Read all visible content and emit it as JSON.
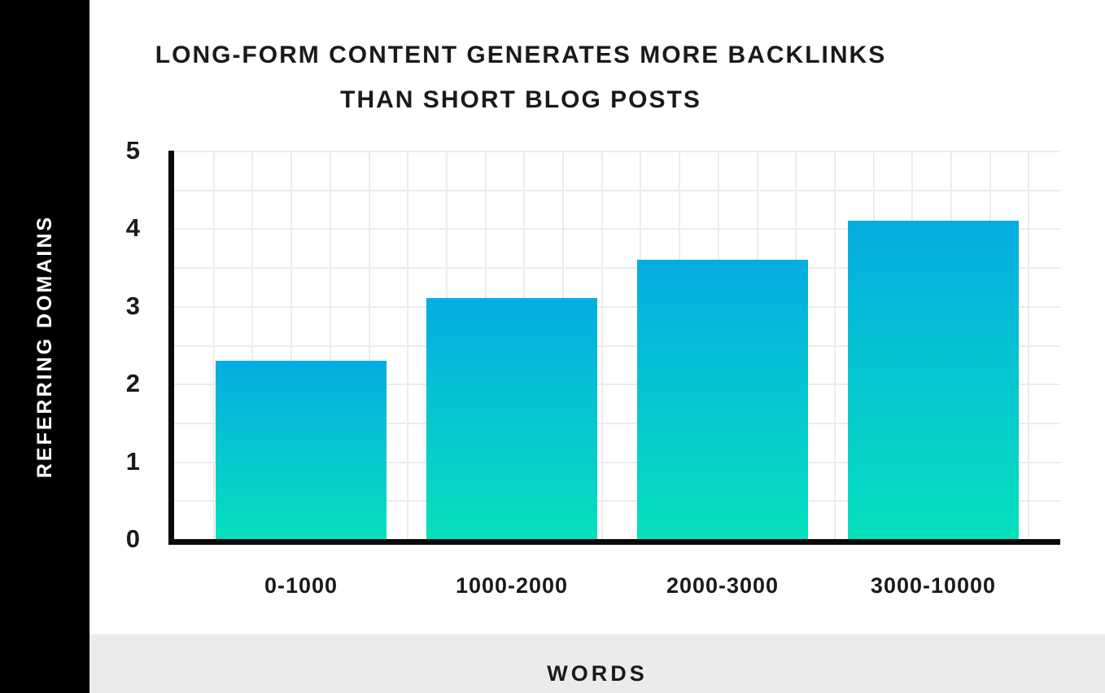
{
  "title": {
    "line1": "LONG-FORM CONTENT GENERATES MORE BACKLINKS",
    "line2": "THAN SHORT BLOG POSTS"
  },
  "y_axis": {
    "label": "REFERRING DOMAINS",
    "ticks": [
      "5",
      "4",
      "3",
      "2",
      "1",
      "0"
    ]
  },
  "x_axis": {
    "label": "WORDS"
  },
  "colors": {
    "sidebar": "#000000",
    "ylabel_text": "#ffffff",
    "text": "#1a1a1a",
    "axis": "#0a0a0a",
    "grid": "#ececec",
    "footer_band": "#ebebeb",
    "bar_top": "#05ade2",
    "bar_bottom": "#06e0bd"
  },
  "chart_data": {
    "type": "bar",
    "title": "LONG-FORM CONTENT GENERATES MORE BACKLINKS THAN SHORT BLOG POSTS",
    "categories": [
      "0-1000",
      "1000-2000",
      "2000-3000",
      "3000-10000"
    ],
    "values": [
      2.3,
      3.1,
      3.6,
      4.1
    ],
    "xlabel": "WORDS",
    "ylabel": "REFERRING DOMAINS",
    "ylim": [
      0,
      5
    ],
    "yticks": [
      0,
      1,
      2,
      3,
      4,
      5
    ],
    "grid": "on",
    "grid_step": 0.5,
    "legend_position": "none",
    "bar_gradient": [
      "#05ade2",
      "#06e0bd"
    ]
  }
}
